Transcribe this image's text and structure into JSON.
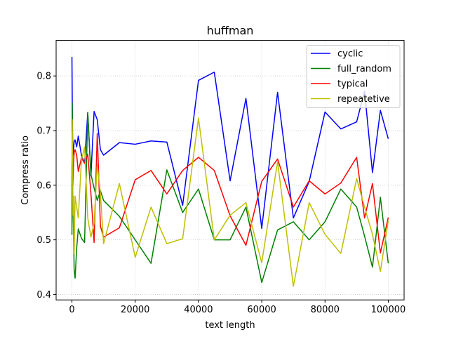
{
  "chart_data": {
    "type": "line",
    "title": "huffman",
    "xlabel": "text length",
    "ylabel": "Compress ratio",
    "xlim": [
      -5000,
      105000
    ],
    "ylim": [
      0.39,
      0.865
    ],
    "xticks": [
      0,
      20000,
      40000,
      60000,
      80000,
      100000
    ],
    "xtick_labels": [
      "0",
      "20000",
      "40000",
      "60000",
      "80000",
      "100000"
    ],
    "yticks": [
      0.4,
      0.5,
      0.6,
      0.7,
      0.8
    ],
    "ytick_labels": [
      "0.4",
      "0.5",
      "0.6",
      "0.7",
      "0.8"
    ],
    "grid": true,
    "legend_position": "top-right",
    "series": [
      {
        "name": "cyclic",
        "color": "#0000ff",
        "x": [
          0,
          100,
          200,
          300,
          500,
          700,
          1000,
          1500,
          2000,
          3000,
          4000,
          5000,
          6000,
          7000,
          8000,
          9000,
          10000,
          15000,
          20000,
          25000,
          30000,
          35000,
          40000,
          45000,
          50000,
          55000,
          60000,
          65000,
          70000,
          75000,
          80000,
          85000,
          90000,
          92500,
          95000,
          97500,
          100000
        ],
        "y": [
          0.835,
          0.75,
          0.69,
          0.655,
          0.665,
          0.68,
          0.683,
          0.67,
          0.69,
          0.655,
          0.64,
          0.733,
          0.617,
          0.735,
          0.72,
          0.665,
          0.655,
          0.678,
          0.675,
          0.681,
          0.679,
          0.563,
          0.792,
          0.807,
          0.608,
          0.759,
          0.521,
          0.77,
          0.54,
          0.607,
          0.734,
          0.703,
          0.716,
          0.772,
          0.623,
          0.737,
          0.685
        ]
      },
      {
        "name": "full_random",
        "color": "#008000",
        "x": [
          0,
          100,
          200,
          300,
          500,
          700,
          1000,
          1500,
          2000,
          3000,
          4000,
          5000,
          6000,
          7000,
          8000,
          9000,
          10000,
          15000,
          20000,
          25000,
          30000,
          35000,
          40000,
          45000,
          50000,
          55000,
          60000,
          65000,
          70000,
          75000,
          80000,
          85000,
          90000,
          92500,
          95000,
          97500,
          100000
        ],
        "y": [
          0.509,
          0.75,
          0.63,
          0.57,
          0.52,
          0.445,
          0.43,
          0.485,
          0.52,
          0.503,
          0.495,
          0.733,
          0.62,
          0.595,
          0.572,
          0.59,
          0.572,
          0.543,
          0.5,
          0.457,
          0.628,
          0.55,
          0.593,
          0.5,
          0.5,
          0.56,
          0.422,
          0.518,
          0.533,
          0.5,
          0.533,
          0.593,
          0.56,
          0.507,
          0.45,
          0.578,
          0.457
        ]
      },
      {
        "name": "typical",
        "color": "#ff0000",
        "x": [
          0,
          100,
          200,
          300,
          500,
          700,
          1000,
          1500,
          2000,
          3000,
          4000,
          5000,
          6000,
          7000,
          8000,
          9000,
          10000,
          15000,
          20000,
          25000,
          30000,
          35000,
          40000,
          45000,
          50000,
          55000,
          60000,
          65000,
          70000,
          75000,
          80000,
          85000,
          90000,
          92500,
          95000,
          97500,
          100000
        ],
        "y": [
          0.72,
          0.66,
          0.625,
          0.6,
          0.64,
          0.66,
          0.665,
          0.655,
          0.625,
          0.65,
          0.64,
          0.657,
          0.585,
          0.495,
          0.695,
          0.525,
          0.505,
          0.522,
          0.61,
          0.627,
          0.584,
          0.627,
          0.651,
          0.627,
          0.544,
          0.49,
          0.607,
          0.648,
          0.56,
          0.608,
          0.584,
          0.604,
          0.651,
          0.54,
          0.603,
          0.476,
          0.541
        ]
      },
      {
        "name": "repeatetive",
        "color": "#bfbf00",
        "x": [
          0,
          100,
          200,
          300,
          500,
          700,
          1000,
          1500,
          2000,
          3000,
          4000,
          5000,
          6000,
          7000,
          8000,
          9000,
          10000,
          15000,
          20000,
          25000,
          30000,
          35000,
          40000,
          45000,
          50000,
          55000,
          60000,
          65000,
          70000,
          75000,
          80000,
          85000,
          90000,
          92500,
          95000,
          97500,
          100000
        ],
        "y": [
          0.64,
          0.72,
          0.64,
          0.545,
          0.58,
          0.475,
          0.58,
          0.56,
          0.54,
          0.645,
          0.67,
          0.54,
          0.505,
          0.53,
          0.638,
          0.585,
          0.493,
          0.603,
          0.468,
          0.56,
          0.493,
          0.502,
          0.723,
          0.5,
          0.545,
          0.568,
          0.458,
          0.643,
          0.415,
          0.568,
          0.51,
          0.475,
          0.612,
          0.56,
          0.51,
          0.442,
          0.535
        ]
      }
    ]
  }
}
